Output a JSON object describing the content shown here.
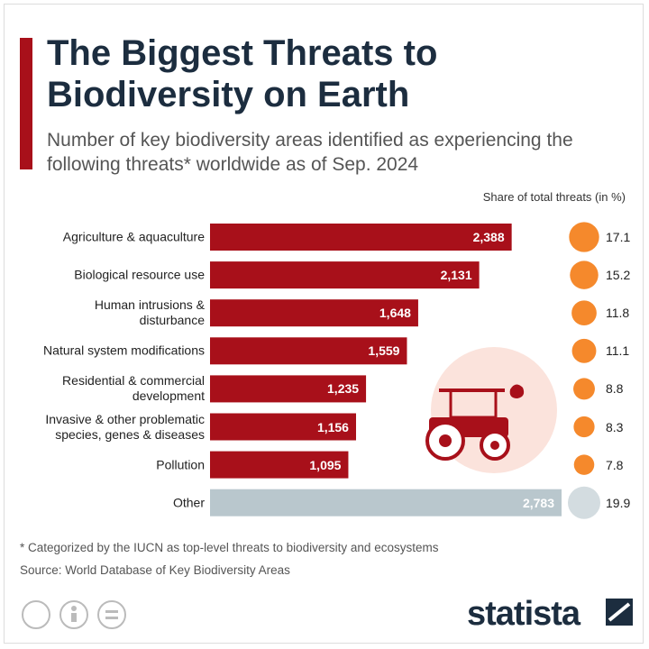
{
  "title": "The Biggest Threats to Biodiversity on Earth",
  "subtitle": "Number of key biodiversity areas identified as experiencing the following threats* worldwide as of Sep. 2024",
  "chart_data": {
    "type": "bar",
    "orientation": "horizontal",
    "categories": [
      "Agriculture & aquaculture",
      "Biological resource use",
      "Human intrusions & disturbance",
      "Natural system modifications",
      "Residential & commercial development",
      "Invasive & other problematic species, genes & diseases",
      "Pollution",
      "Other"
    ],
    "values": [
      2388,
      2131,
      1648,
      1559,
      1235,
      1156,
      1095,
      2783
    ],
    "value_labels": [
      "2,388",
      "2,131",
      "1,648",
      "1,559",
      "1,235",
      "1,156",
      "1,095",
      "2,783"
    ],
    "colors": [
      "#a8101a",
      "#a8101a",
      "#a8101a",
      "#a8101a",
      "#a8101a",
      "#a8101a",
      "#a8101a",
      "#b9c7cd"
    ],
    "shares": {
      "title": "Share of total threats (in %)",
      "values": [
        17.1,
        15.2,
        11.8,
        11.1,
        8.8,
        8.3,
        7.8,
        19.9
      ],
      "colors": [
        "#f5892c",
        "#f5892c",
        "#f5892c",
        "#f5892c",
        "#f5892c",
        "#f5892c",
        "#f5892c",
        "#d3dce0"
      ]
    }
  },
  "footnote": "* Categorized by the IUCN as top-level threats to biodiversity and ecosystems",
  "source": "Source: World Database of Key Biodiversity Areas",
  "brand": "statista"
}
